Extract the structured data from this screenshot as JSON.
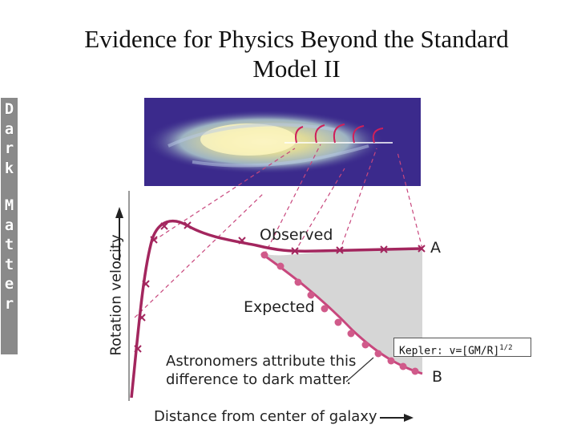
{
  "slide": {
    "title_line1": "Evidence for Physics Beyond the Standard",
    "title_line2": "Model II",
    "sidebar_letters": [
      "D",
      "a",
      "r",
      "k",
      "M",
      "a",
      "t",
      "t",
      "e",
      "r"
    ]
  },
  "diagram": {
    "label_observed": "Observed",
    "label_expected": "Expected",
    "label_a": "A",
    "label_b": "B",
    "annotation_line1": "Astronomers attribute this",
    "annotation_line2": "difference to dark matter.",
    "y_axis_label": "Rotation velocity",
    "x_axis_label": "Distance from center of galaxy",
    "kepler_prefix": "Kepler: v=[GM/R]",
    "kepler_exponent": "1/2"
  },
  "colors": {
    "curve": "#a3265e",
    "expected_dot": "#c8477d",
    "shade": "#d6d6d6",
    "galaxy_bg": "#3b2a8c",
    "sidebar_bg": "#8a8a8a"
  }
}
